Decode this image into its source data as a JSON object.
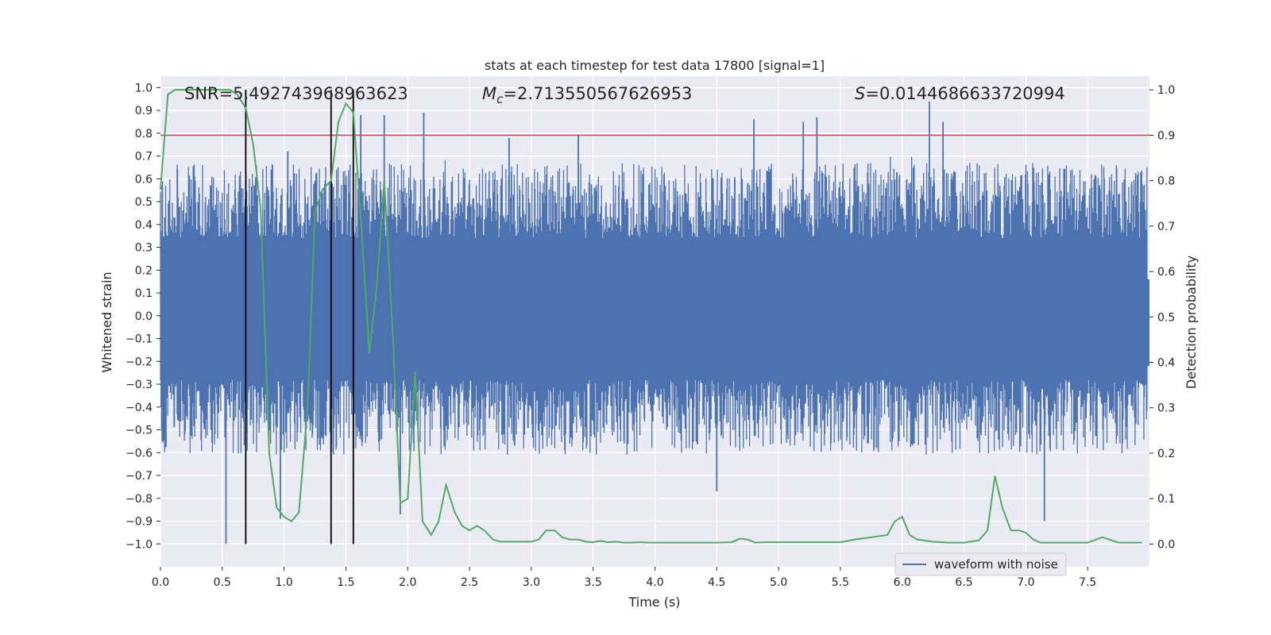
{
  "chart_data": {
    "type": "line",
    "title": "stats at each timestep for test data 17800 [signal=1]",
    "xlabel": "Time (s)",
    "ylabel_left": "Whitened strain",
    "ylabel_right": "Detection probability",
    "xlim": [
      0.0,
      8.0
    ],
    "ylim_left": [
      -1.1,
      1.05
    ],
    "ylim_right": [
      -0.05,
      1.03
    ],
    "x_ticks": [
      "0.0",
      "0.5",
      "1.0",
      "1.5",
      "2.0",
      "2.5",
      "3.0",
      "3.5",
      "4.0",
      "4.5",
      "5.0",
      "5.5",
      "6.0",
      "6.5",
      "7.0",
      "7.5"
    ],
    "x_tick_values": [
      0.0,
      0.5,
      1.0,
      1.5,
      2.0,
      2.5,
      3.0,
      3.5,
      4.0,
      4.5,
      5.0,
      5.5,
      6.0,
      6.5,
      7.0,
      7.5
    ],
    "y_left_ticks": [
      "1.0",
      "0.9",
      "0.8",
      "0.7",
      "0.6",
      "0.5",
      "0.4",
      "0.3",
      "0.2",
      "0.1",
      "0.0",
      "−0.1",
      "−0.2",
      "−0.3",
      "−0.4",
      "−0.5",
      "−0.6",
      "−0.7",
      "−0.8",
      "−0.9",
      "−1.0"
    ],
    "y_left_tick_values": [
      1.0,
      0.9,
      0.8,
      0.7,
      0.6,
      0.5,
      0.4,
      0.3,
      0.2,
      0.1,
      0.0,
      -0.1,
      -0.2,
      -0.3,
      -0.4,
      -0.5,
      -0.6,
      -0.7,
      -0.8,
      -0.9,
      -1.0
    ],
    "y_right_ticks": [
      "1.0",
      "0.9",
      "0.8",
      "0.7",
      "0.6",
      "0.5",
      "0.4",
      "0.3",
      "0.2",
      "0.1",
      "0.0"
    ],
    "y_right_tick_values": [
      1.0,
      0.9,
      0.8,
      0.7,
      0.6,
      0.5,
      0.4,
      0.3,
      0.2,
      0.1,
      0.0
    ],
    "annotations": {
      "snr": "SNR=5.492743968963623",
      "mc_symbol": "M",
      "mc_sub": "c",
      "mc_value": "=2.713550567626953",
      "s_symbol": "S",
      "s_value": "=0.0144686633720994"
    },
    "legend": {
      "label": "waveform with noise",
      "placement": "lower right"
    },
    "threshold": {
      "value": 0.9,
      "axis": "right",
      "color": "#c44e52"
    },
    "vertical_markers": [
      0.69,
      1.38,
      1.56
    ],
    "noise_series": {
      "name": "waveform with noise",
      "color": "#4c72b0",
      "base_envelope": [
        -0.28,
        0.34
      ],
      "peaks": [
        {
          "t": 0.53,
          "v": -1.0
        },
        {
          "t": 1.03,
          "v": 0.72
        },
        {
          "t": 1.62,
          "v": 0.88
        },
        {
          "t": 1.81,
          "v": 0.88
        },
        {
          "t": 2.13,
          "v": 0.89
        },
        {
          "t": 2.82,
          "v": 0.78
        },
        {
          "t": 3.38,
          "v": 0.79
        },
        {
          "t": 4.8,
          "v": 0.86
        },
        {
          "t": 5.2,
          "v": 0.85
        },
        {
          "t": 5.31,
          "v": 0.87
        },
        {
          "t": 6.22,
          "v": 0.94
        },
        {
          "t": 6.33,
          "v": 0.85
        },
        {
          "t": 7.15,
          "v": -0.9
        },
        {
          "t": 0.97,
          "v": -0.89
        },
        {
          "t": 1.94,
          "v": -0.87
        },
        {
          "t": 4.5,
          "v": -0.77
        }
      ]
    },
    "probability_series": {
      "name": "detection probability",
      "color": "#55a868",
      "x": [
        0.0,
        0.06,
        0.12,
        0.19,
        0.25,
        0.31,
        0.38,
        0.44,
        0.5,
        0.56,
        0.62,
        0.69,
        0.75,
        0.81,
        0.88,
        0.94,
        1.0,
        1.06,
        1.12,
        1.19,
        1.25,
        1.31,
        1.38,
        1.44,
        1.5,
        1.56,
        1.62,
        1.69,
        1.75,
        1.81,
        1.88,
        1.94,
        2.0,
        2.06,
        2.12,
        2.19,
        2.25,
        2.31,
        2.38,
        2.44,
        2.5,
        2.56,
        2.62,
        2.69,
        2.75,
        2.81,
        2.88,
        2.94,
        3.0,
        3.06,
        3.12,
        3.19,
        3.25,
        3.31,
        3.38,
        3.44,
        3.5,
        3.56,
        3.62,
        3.69,
        3.75,
        3.81,
        3.88,
        3.94,
        4.0,
        4.12,
        4.25,
        4.38,
        4.5,
        4.62,
        4.69,
        4.75,
        4.81,
        4.88,
        5.0,
        5.12,
        5.25,
        5.38,
        5.5,
        5.62,
        5.75,
        5.88,
        5.94,
        6.0,
        6.06,
        6.12,
        6.25,
        6.38,
        6.5,
        6.62,
        6.69,
        6.75,
        6.81,
        6.88,
        6.94,
        7.0,
        7.06,
        7.12,
        7.25,
        7.38,
        7.5,
        7.62,
        7.75,
        7.94
      ],
      "y": [
        0.78,
        0.99,
        1.0,
        1.0,
        1.0,
        1.0,
        1.0,
        1.0,
        1.0,
        1.0,
        0.99,
        0.96,
        0.88,
        0.74,
        0.2,
        0.08,
        0.06,
        0.05,
        0.07,
        0.3,
        0.73,
        0.78,
        0.8,
        0.93,
        0.97,
        0.95,
        0.72,
        0.42,
        0.57,
        0.8,
        0.46,
        0.09,
        0.1,
        0.38,
        0.05,
        0.02,
        0.05,
        0.13,
        0.07,
        0.04,
        0.03,
        0.04,
        0.03,
        0.01,
        0.005,
        0.005,
        0.005,
        0.005,
        0.005,
        0.01,
        0.03,
        0.03,
        0.015,
        0.01,
        0.01,
        0.005,
        0.004,
        0.007,
        0.004,
        0.005,
        0.003,
        0.003,
        0.004,
        0.003,
        0.003,
        0.003,
        0.003,
        0.003,
        0.003,
        0.004,
        0.012,
        0.01,
        0.003,
        0.004,
        0.004,
        0.004,
        0.004,
        0.004,
        0.004,
        0.01,
        0.015,
        0.02,
        0.05,
        0.06,
        0.02,
        0.01,
        0.005,
        0.003,
        0.003,
        0.008,
        0.03,
        0.15,
        0.08,
        0.03,
        0.03,
        0.025,
        0.01,
        0.003,
        0.003,
        0.003,
        0.003,
        0.015,
        0.003,
        0.003
      ]
    }
  }
}
